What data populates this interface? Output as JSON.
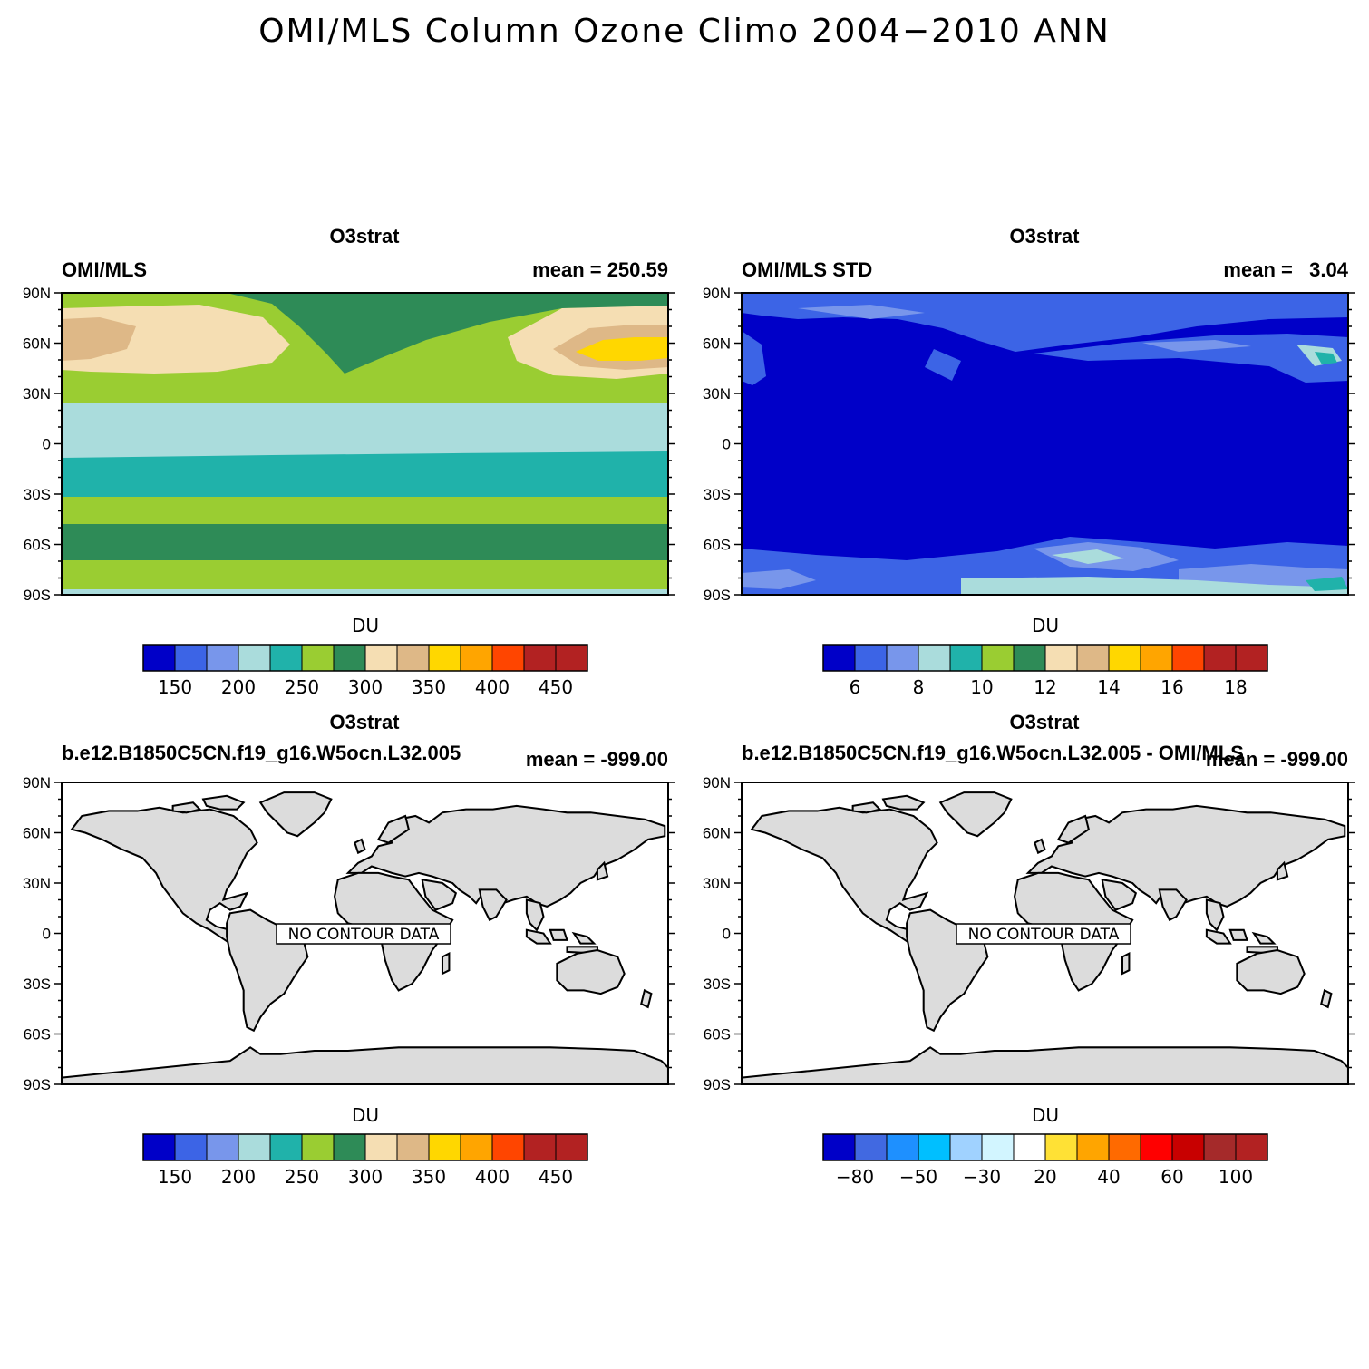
{
  "figure_title": "OMI/MLS Column Ozone Climo 2004−2010 ANN",
  "lat_ticks": [
    "90N",
    "60N",
    "30N",
    "0",
    "30S",
    "60S",
    "90S"
  ],
  "colorbar_unit": "DU",
  "no_data_text": "NO CONTOUR DATA",
  "panels": [
    {
      "title": "O3strat",
      "left_label": "OMI/MLS",
      "right_label": "mean = 250.59",
      "has_data": true,
      "colorbar": {
        "colors": [
          "#0000c8",
          "#3c64e6",
          "#7896eb",
          "#aadcdc",
          "#20b2aa",
          "#9acd32",
          "#2e8b57",
          "#f5deb3",
          "#deb887",
          "#ffd700",
          "#ffa500",
          "#ff4500",
          "#b22222",
          "#b22222"
        ],
        "labels": [
          "150",
          "200",
          "250",
          "300",
          "350",
          "400",
          "450"
        ]
      }
    },
    {
      "title": "O3strat",
      "left_label": "OMI/MLS STD",
      "right_label": "mean =   3.04",
      "has_data": true,
      "colorbar": {
        "colors": [
          "#0000c8",
          "#3c64e6",
          "#7896eb",
          "#aadcdc",
          "#20b2aa",
          "#9acd32",
          "#2e8b57",
          "#f5deb3",
          "#deb887",
          "#ffd700",
          "#ffa500",
          "#ff4500",
          "#b22222",
          "#b22222"
        ],
        "labels": [
          "6",
          "8",
          "10",
          "12",
          "14",
          "16",
          "18"
        ]
      }
    },
    {
      "title": "O3strat",
      "left_label": "b.e12.B1850C5CN.f19_g16.W5ocn.L32.005",
      "right_label": "mean = -999.00",
      "has_data": false,
      "colorbar": {
        "colors": [
          "#0000c8",
          "#3c64e6",
          "#7896eb",
          "#aadcdc",
          "#20b2aa",
          "#9acd32",
          "#2e8b57",
          "#f5deb3",
          "#deb887",
          "#ffd700",
          "#ffa500",
          "#ff4500",
          "#b22222",
          "#b22222"
        ],
        "labels": [
          "150",
          "200",
          "250",
          "300",
          "350",
          "400",
          "450"
        ]
      }
    },
    {
      "title": "O3strat",
      "left_label": "b.e12.B1850C5CN.f19_g16.W5ocn.L32.005 - OMI/MLS",
      "right_label": "mean = -999.00",
      "has_data": false,
      "colorbar": {
        "colors": [
          "#0000c8",
          "#4169e1",
          "#1e90ff",
          "#00bfff",
          "#a0d2ff",
          "#d2f5ff",
          "#ffffff",
          "#ffe135",
          "#ffa500",
          "#ff6a00",
          "#ff0000",
          "#c80000",
          "#a52a2a",
          "#b22222"
        ],
        "labels": [
          "−80",
          "−50",
          "−30",
          "20",
          "40",
          "60",
          "100"
        ]
      }
    }
  ]
}
